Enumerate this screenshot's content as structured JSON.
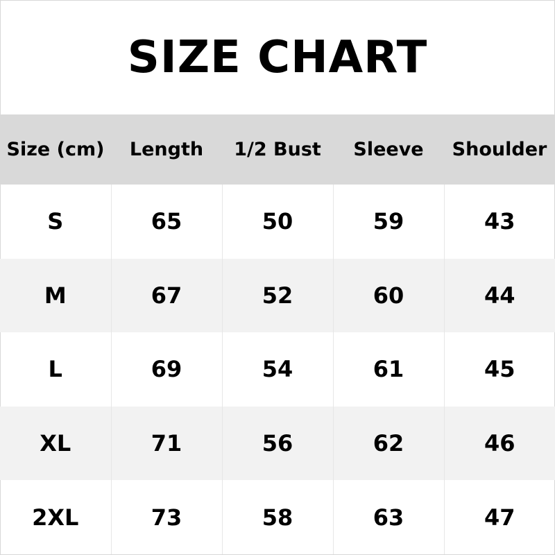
{
  "title": "SIZE CHART",
  "columns": [
    "Size (cm)",
    "Length",
    "1/2 Bust",
    "Sleeve",
    "Shoulder"
  ],
  "rows": [
    [
      "S",
      "65",
      "50",
      "59",
      "43"
    ],
    [
      "M",
      "67",
      "52",
      "60",
      "44"
    ],
    [
      "L",
      "69",
      "54",
      "61",
      "45"
    ],
    [
      "XL",
      "71",
      "56",
      "62",
      "46"
    ],
    [
      "2XL",
      "73",
      "58",
      "63",
      "47"
    ]
  ],
  "colors": {
    "header_bg": "#d9d9d9",
    "alt_row_bg": "#f2f2f2",
    "text": "#000000"
  }
}
